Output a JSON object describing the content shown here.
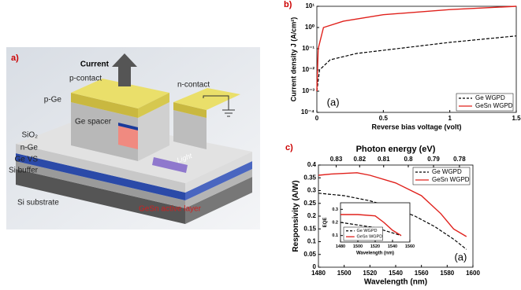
{
  "diagram": {
    "panel_label": "a)",
    "labels": {
      "current": "Current",
      "p_contact": "p-contact",
      "n_contact": "n-contact",
      "p_ge": "p-Ge",
      "ge_spacer": "Ge spacer",
      "sio2": "SiO₂",
      "n_ge": "n-Ge",
      "ge_vs": "Ge VS",
      "si_buffer": "Si buffer",
      "si_substrate": "Si substrate",
      "gesn_layer": "GeSn active layer",
      "light": "Light"
    }
  },
  "chart_data": [
    {
      "type": "line",
      "panel_label": "b)",
      "annotation": "(a)",
      "xlabel": "Reverse bias voltage (volt)",
      "ylabel": "Current density J (A/cm²)",
      "xlim": [
        0,
        1.5
      ],
      "xticks": [
        0,
        0.5,
        1,
        1.5
      ],
      "log_y": true,
      "ylim": [
        0.0001,
        10
      ],
      "yticks": [
        {
          "value": 0.0001,
          "label": "10⁻⁴"
        },
        {
          "value": 0.001,
          "label": "10⁻³"
        },
        {
          "value": 0.01,
          "label": "10⁻²"
        },
        {
          "value": 0.1,
          "label": "10⁻¹"
        },
        {
          "value": 1,
          "label": "10⁰"
        },
        {
          "value": 10,
          "label": "10¹"
        }
      ],
      "legend": "lower right",
      "series": [
        {
          "name": "Ge WGPD",
          "color": "#000000",
          "dash": true,
          "x": [
            0,
            0.02,
            0.1,
            0.3,
            0.6,
            1,
            1.5
          ],
          "values": [
            0.001,
            0.01,
            0.03,
            0.06,
            0.1,
            0.2,
            0.4
          ]
        },
        {
          "name": "GeSn WGPD",
          "color": "#e0201b",
          "dash": false,
          "x": [
            0,
            0.01,
            0.05,
            0.2,
            0.5,
            1,
            1.5
          ],
          "values": [
            0.001,
            0.1,
            1,
            2,
            4,
            7,
            10
          ]
        }
      ]
    },
    {
      "type": "line",
      "panel_label": "c)",
      "annotation": "(a)",
      "xlabel": "Wavelength (nm)",
      "ylabel": "Responsivity (A/W)",
      "x2label": "Photon energy (eV)",
      "xlim": [
        1480,
        1600
      ],
      "xticks": [
        1480,
        1500,
        1520,
        1540,
        1560,
        1580,
        1600
      ],
      "x2ticks": [
        0.83,
        0.82,
        0.81,
        0.8,
        0.79,
        0.78
      ],
      "ylim": [
        0,
        0.4
      ],
      "yticks": [
        0,
        0.05,
        0.1,
        0.15,
        0.2,
        0.25,
        0.3,
        0.35,
        0.4
      ],
      "legend": "upper right",
      "series": [
        {
          "name": "Ge WGPD",
          "color": "#000000",
          "dash": true,
          "x": [
            1480,
            1500,
            1520,
            1540,
            1555,
            1570,
            1585,
            1595
          ],
          "values": [
            0.29,
            0.28,
            0.26,
            0.23,
            0.2,
            0.16,
            0.11,
            0.07
          ]
        },
        {
          "name": "GeSn WGPD",
          "color": "#e0201b",
          "dash": false,
          "x": [
            1480,
            1490,
            1510,
            1520,
            1540,
            1560,
            1575,
            1585,
            1595
          ],
          "values": [
            0.36,
            0.365,
            0.37,
            0.36,
            0.33,
            0.28,
            0.21,
            0.15,
            0.12
          ]
        }
      ]
    },
    {
      "type": "line",
      "xlabel": "Wavelength (nm)",
      "ylabel": "EQE",
      "xlim": [
        1480,
        1560
      ],
      "xticks": [
        1480,
        1500,
        1520,
        1540,
        1560
      ],
      "ylim": [
        0.05,
        0.35
      ],
      "yticks": [
        0.1,
        0.2,
        0.3
      ],
      "legend": "lower left",
      "series": [
        {
          "name": "Ge WGPD",
          "color": "#000000",
          "dash": true,
          "x": [
            1480,
            1500,
            1520,
            1540,
            1550
          ],
          "values": [
            0.2,
            0.18,
            0.16,
            0.12,
            0.1
          ]
        },
        {
          "name": "GeSn WGPD",
          "color": "#e0201b",
          "dash": false,
          "x": [
            1480,
            1500,
            1520,
            1530,
            1540,
            1550
          ],
          "values": [
            0.26,
            0.26,
            0.25,
            0.2,
            0.14,
            0.1
          ]
        }
      ]
    }
  ]
}
